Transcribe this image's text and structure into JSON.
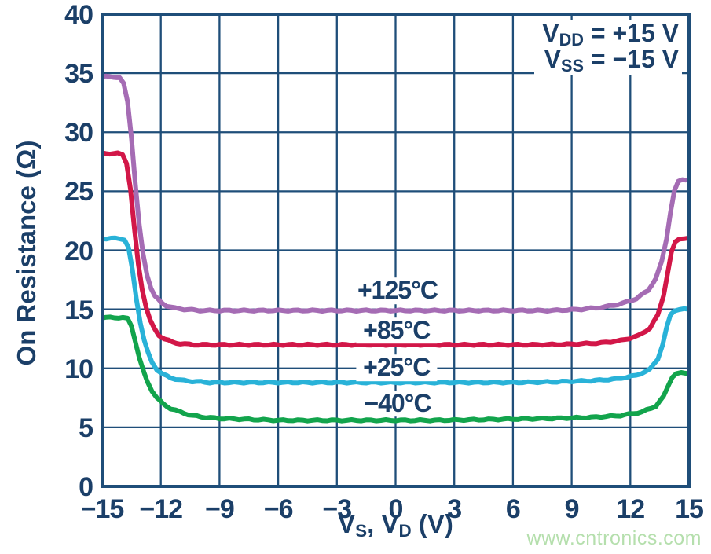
{
  "colors": {
    "text": "#1b3f68",
    "grid": "#1f4e79",
    "watermark": "#b5dfad",
    "background": "#ffffff"
  },
  "watermark": "www.cntronics.com",
  "annotation": {
    "line1": {
      "pre": "V",
      "sub": "DD",
      "post": " = +15 V"
    },
    "line2": {
      "pre": "V",
      "sub": "SS",
      "post": " = −15 V"
    }
  },
  "xlabel_parts": {
    "p1": "V",
    "s1": "S",
    "p2": ", V",
    "s2": "D",
    "p3": " (V)"
  },
  "chart_data": {
    "type": "line",
    "title": "",
    "xlabel": "VS, VD (V)",
    "ylabel": "On Resistance (Ω)",
    "xlim": [
      -15,
      15
    ],
    "ylim": [
      0,
      40
    ],
    "grid": true,
    "legend_position": "labels-on-curves",
    "x_ticks": [
      -15,
      -12,
      -9,
      -6,
      -3,
      0,
      3,
      6,
      9,
      12,
      15
    ],
    "y_ticks": [
      0,
      5,
      10,
      15,
      20,
      25,
      30,
      35,
      40
    ],
    "x_tick_labels": [
      "−15",
      "−12",
      "−9",
      "−6",
      "−3",
      "0",
      "3",
      "6",
      "9",
      "12",
      "15"
    ],
    "y_tick_labels": [
      "0",
      "5",
      "10",
      "15",
      "20",
      "25",
      "30",
      "35",
      "40"
    ],
    "series": [
      {
        "name": "+125°C",
        "color": "#a56cb4",
        "label_x": 0.1,
        "label_y": 16.55,
        "points": [
          [
            -15,
            34.7
          ],
          [
            -14.4,
            34.7
          ],
          [
            -14.1,
            34.6
          ],
          [
            -13.9,
            34.1
          ],
          [
            -13.7,
            32.6
          ],
          [
            -13.5,
            29.6
          ],
          [
            -13.3,
            25.6
          ],
          [
            -13.1,
            22.1
          ],
          [
            -12.9,
            19.6
          ],
          [
            -12.7,
            17.9
          ],
          [
            -12.5,
            16.8
          ],
          [
            -12.3,
            16.1
          ],
          [
            -12.0,
            15.6
          ],
          [
            -11.7,
            15.3
          ],
          [
            -11.3,
            15.1
          ],
          [
            -10.8,
            15.0
          ],
          [
            -10,
            14.9
          ],
          [
            -8,
            14.9
          ],
          [
            -6,
            14.9
          ],
          [
            -4,
            14.9
          ],
          [
            -2,
            14.9
          ],
          [
            0,
            14.9
          ],
          [
            2,
            14.9
          ],
          [
            4,
            14.9
          ],
          [
            6,
            14.9
          ],
          [
            8,
            14.9
          ],
          [
            9.5,
            15.0
          ],
          [
            10.7,
            15.2
          ],
          [
            11.6,
            15.5
          ],
          [
            12.3,
            15.9
          ],
          [
            12.9,
            16.6
          ],
          [
            13.3,
            17.6
          ],
          [
            13.6,
            19.0
          ],
          [
            13.85,
            21.0
          ],
          [
            14.05,
            23.2
          ],
          [
            14.25,
            25.0
          ],
          [
            14.45,
            25.8
          ],
          [
            14.65,
            26.0
          ],
          [
            15,
            26.0
          ]
        ]
      },
      {
        "name": "+85°C",
        "color": "#d21748",
        "label_x": 0.05,
        "label_y": 13.2,
        "points": [
          [
            -15,
            28.2
          ],
          [
            -14.2,
            28.2
          ],
          [
            -13.95,
            28.1
          ],
          [
            -13.75,
            27.4
          ],
          [
            -13.55,
            25.2
          ],
          [
            -13.35,
            21.8
          ],
          [
            -13.15,
            18.8
          ],
          [
            -12.95,
            16.7
          ],
          [
            -12.75,
            15.2
          ],
          [
            -12.55,
            14.1
          ],
          [
            -12.35,
            13.4
          ],
          [
            -12.1,
            12.8
          ],
          [
            -11.8,
            12.5
          ],
          [
            -11.4,
            12.2
          ],
          [
            -11.0,
            12.1
          ],
          [
            -10.3,
            12.0
          ],
          [
            -9,
            12.0
          ],
          [
            -7,
            12.0
          ],
          [
            -5,
            12.0
          ],
          [
            -3,
            12.0
          ],
          [
            -1,
            12.0
          ],
          [
            1,
            12.0
          ],
          [
            3,
            12.0
          ],
          [
            5,
            12.0
          ],
          [
            7,
            12.0
          ],
          [
            9,
            12.05
          ],
          [
            10.5,
            12.15
          ],
          [
            11.5,
            12.35
          ],
          [
            12.4,
            12.75
          ],
          [
            13.0,
            13.4
          ],
          [
            13.4,
            14.5
          ],
          [
            13.7,
            16.2
          ],
          [
            13.9,
            18.0
          ],
          [
            14.1,
            19.8
          ],
          [
            14.3,
            20.7
          ],
          [
            14.5,
            21.0
          ],
          [
            15,
            21.0
          ]
        ]
      },
      {
        "name": "+25°C",
        "color": "#29b2d8",
        "label_x": 0.05,
        "label_y": 10.05,
        "points": [
          [
            -15,
            21.0
          ],
          [
            -14.1,
            21.0
          ],
          [
            -13.85,
            20.9
          ],
          [
            -13.65,
            20.2
          ],
          [
            -13.45,
            18.3
          ],
          [
            -13.25,
            15.9
          ],
          [
            -13.05,
            13.9
          ],
          [
            -12.85,
            12.4
          ],
          [
            -12.65,
            11.3
          ],
          [
            -12.45,
            10.5
          ],
          [
            -12.2,
            9.9
          ],
          [
            -11.9,
            9.5
          ],
          [
            -11.5,
            9.2
          ],
          [
            -11.0,
            9.0
          ],
          [
            -10.4,
            8.9
          ],
          [
            -9.5,
            8.8
          ],
          [
            -8,
            8.8
          ],
          [
            -6,
            8.8
          ],
          [
            -4,
            8.8
          ],
          [
            -2,
            8.8
          ],
          [
            0,
            8.8
          ],
          [
            2,
            8.8
          ],
          [
            4,
            8.8
          ],
          [
            6,
            8.8
          ],
          [
            8,
            8.85
          ],
          [
            10,
            8.95
          ],
          [
            11.3,
            9.1
          ],
          [
            12.3,
            9.4
          ],
          [
            13.0,
            9.9
          ],
          [
            13.4,
            10.8
          ],
          [
            13.65,
            12.0
          ],
          [
            13.85,
            13.4
          ],
          [
            14.05,
            14.5
          ],
          [
            14.25,
            14.9
          ],
          [
            14.5,
            15.0
          ],
          [
            15,
            15.0
          ]
        ]
      },
      {
        "name": "−40°C",
        "color": "#12a44c",
        "label_x": 0.1,
        "label_y": 7.0,
        "points": [
          [
            -15,
            14.3
          ],
          [
            -13.95,
            14.3
          ],
          [
            -13.7,
            14.2
          ],
          [
            -13.5,
            13.6
          ],
          [
            -13.3,
            12.3
          ],
          [
            -13.1,
            10.9
          ],
          [
            -12.9,
            9.8
          ],
          [
            -12.7,
            8.9
          ],
          [
            -12.45,
            8.1
          ],
          [
            -12.2,
            7.5
          ],
          [
            -11.9,
            7.0
          ],
          [
            -11.5,
            6.6
          ],
          [
            -11.0,
            6.3
          ],
          [
            -10.4,
            6.0
          ],
          [
            -9.7,
            5.85
          ],
          [
            -9.0,
            5.75
          ],
          [
            -8,
            5.7
          ],
          [
            -6,
            5.6
          ],
          [
            -4,
            5.6
          ],
          [
            -2,
            5.6
          ],
          [
            0,
            5.6
          ],
          [
            2,
            5.6
          ],
          [
            4,
            5.65
          ],
          [
            6,
            5.7
          ],
          [
            8,
            5.75
          ],
          [
            10,
            5.85
          ],
          [
            11.5,
            6.0
          ],
          [
            12.6,
            6.3
          ],
          [
            13.3,
            6.8
          ],
          [
            13.7,
            7.6
          ],
          [
            13.95,
            8.6
          ],
          [
            14.15,
            9.3
          ],
          [
            14.35,
            9.55
          ],
          [
            14.6,
            9.6
          ],
          [
            15,
            9.6
          ]
        ]
      }
    ]
  }
}
